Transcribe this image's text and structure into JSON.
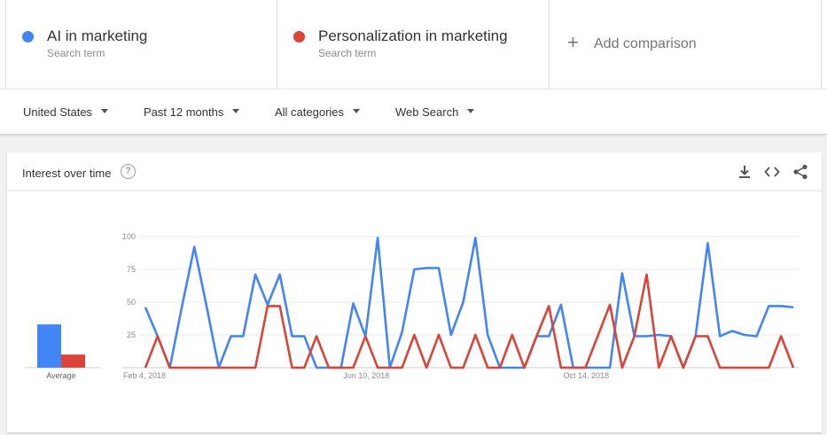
{
  "terms": [
    {
      "name": "AI in marketing",
      "type": "Search term",
      "color": "#4285f4"
    },
    {
      "name": "Personalization in marketing",
      "type": "Search term",
      "color": "#db4437"
    }
  ],
  "add_comparison": "Add comparison",
  "filters": {
    "region": "United States",
    "time": "Past 12 months",
    "category": "All categories",
    "property": "Web Search"
  },
  "card": {
    "title": "Interest over time",
    "help_icon": "help-circle-icon",
    "actions": [
      "download-icon",
      "embed-code-icon",
      "share-icon"
    ]
  },
  "chart_data": {
    "type": "line",
    "title": "Interest over time",
    "xlabel": "",
    "ylabel": "",
    "ylim": [
      0,
      100
    ],
    "y_ticks": [
      25,
      50,
      75,
      100
    ],
    "x_tick_labels": [
      "Feb 4, 2018",
      "Jun 10, 2018",
      "Oct 14, 2018"
    ],
    "x_tick_index": [
      0,
      18,
      36
    ],
    "grid": true,
    "average_label": "Average",
    "averages": [
      33,
      10
    ],
    "series": [
      {
        "name": "AI in marketing",
        "color": "#4285f4",
        "values": [
          46,
          24,
          0,
          47,
          92,
          47,
          0,
          24,
          24,
          71,
          48,
          71,
          24,
          24,
          0,
          0,
          0,
          49,
          24,
          99,
          0,
          27,
          75,
          76,
          76,
          25,
          50,
          99,
          25,
          0,
          0,
          0,
          24,
          24,
          48,
          0,
          0,
          0,
          0,
          72,
          24,
          24,
          25,
          24,
          0,
          24,
          95,
          24,
          28,
          25,
          24,
          47,
          47,
          46
        ]
      },
      {
        "name": "Personalization in marketing",
        "color": "#db4437",
        "values": [
          0,
          24,
          0,
          0,
          0,
          0,
          0,
          0,
          0,
          0,
          47,
          47,
          0,
          0,
          24,
          0,
          0,
          0,
          24,
          0,
          0,
          0,
          25,
          0,
          25,
          0,
          0,
          25,
          0,
          0,
          25,
          0,
          24,
          47,
          0,
          0,
          0,
          24,
          48,
          0,
          24,
          71,
          0,
          24,
          0,
          24,
          24,
          0,
          0,
          0,
          0,
          0,
          24,
          0
        ]
      }
    ]
  }
}
